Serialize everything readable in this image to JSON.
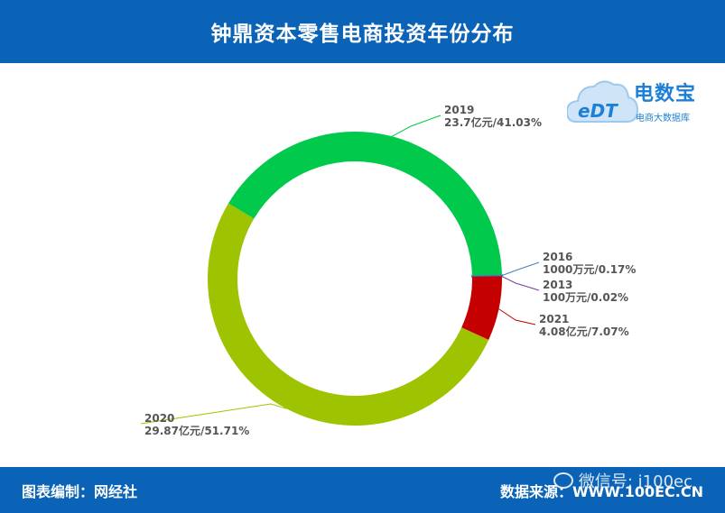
{
  "header": {
    "title": "钟鼎资本零售电商投资年份分布"
  },
  "footer": {
    "left": "图表编制：网经社",
    "right": "数据来源：WWW.100EC.CN",
    "watermark": "微信号: i100ec"
  },
  "logo": {
    "brand": "电数宝",
    "sub": "电商大数据库",
    "mark": "eDT"
  },
  "colors": {
    "header_bg": "#0a63b7",
    "2019": "#00c94c",
    "2020": "#9ec300",
    "2021": "#c40000",
    "2016": "#4a7fb5",
    "2013": "#7a3c9a"
  },
  "chart_data": {
    "type": "pie",
    "donut": true,
    "title": "钟鼎资本零售电商投资年份分布",
    "slices": [
      {
        "name": "2016",
        "value": 0.17,
        "label": "1000万元/0.17%"
      },
      {
        "name": "2013",
        "value": 0.02,
        "label": "100万元/0.02%"
      },
      {
        "name": "2021",
        "value": 7.07,
        "label": "4.08亿元/7.07%"
      },
      {
        "name": "2020",
        "value": 51.71,
        "label": "29.87亿元/51.71%"
      },
      {
        "name": "2019",
        "value": 41.03,
        "label": "23.7亿元/41.03%"
      }
    ]
  }
}
